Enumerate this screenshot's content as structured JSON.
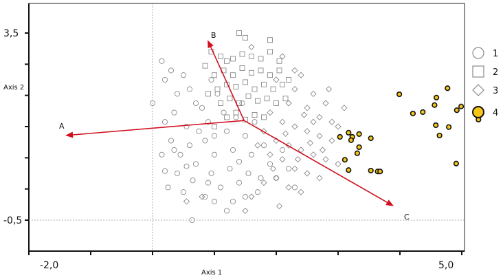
{
  "chart_data": {
    "type": "scatter",
    "title": "",
    "xlabel": "Axis 1",
    "ylabel": "Axis 2",
    "xlim": [
      -2.0,
      5.0
    ],
    "ylim": [
      -1.17,
      4.13
    ],
    "x_tick_labels": [
      {
        "value": -2.0,
        "label": "-2,0"
      },
      {
        "value": 5.0,
        "label": "5,0"
      }
    ],
    "y_tick_labels": [
      {
        "value": 3.5,
        "label": "3,5"
      },
      {
        "value": -0.5,
        "label": "-0,5"
      }
    ],
    "x_ticks": [
      -2,
      -1,
      0,
      1,
      2,
      3,
      4,
      5
    ],
    "y_ticks": [
      3.5,
      2.833,
      2.167,
      1.5,
      0.833,
      0.167,
      -0.5
    ],
    "reference_lines": {
      "x": 0.0,
      "y": -0.5
    },
    "legend_position": "right",
    "colors": {
      "gray": "#8a8a8a",
      "group4_fill": "#f5c518",
      "arrow": "#d0101e"
    },
    "vectors": {
      "origin": [
        1.48,
        1.63
      ],
      "items": [
        {
          "name": "A",
          "tip": [
            -1.41,
            1.31
          ]
        },
        {
          "name": "B",
          "tip": [
            0.89,
            3.35
          ]
        },
        {
          "name": "C",
          "tip": [
            3.9,
            -0.2
          ]
        }
      ]
    },
    "series": [
      {
        "name": "1",
        "marker": "circle",
        "points": [
          [
            0.0,
            2.0
          ],
          [
            0.15,
            2.9
          ],
          [
            0.3,
            2.7
          ],
          [
            0.2,
            2.5
          ],
          [
            0.4,
            2.2
          ],
          [
            0.35,
            1.8
          ],
          [
            0.5,
            2.6
          ],
          [
            0.6,
            2.3
          ],
          [
            0.55,
            1.5
          ],
          [
            0.2,
            1.6
          ],
          [
            0.3,
            1.2
          ],
          [
            0.45,
            0.9
          ],
          [
            0.6,
            1.1
          ],
          [
            0.7,
            0.7
          ],
          [
            0.4,
            0.5
          ],
          [
            0.25,
            0.2
          ],
          [
            0.5,
            0.1
          ],
          [
            0.65,
            0.35
          ],
          [
            0.8,
            1.9
          ],
          [
            0.9,
            1.6
          ],
          [
            0.85,
            1.2
          ],
          [
            1.0,
            0.9
          ],
          [
            0.95,
            0.5
          ],
          [
            1.1,
            0.2
          ],
          [
            1.0,
            -0.1
          ],
          [
            0.9,
            0.3
          ],
          [
            1.2,
            1.4
          ],
          [
            1.3,
            1.0
          ],
          [
            1.25,
            0.6
          ],
          [
            1.4,
            0.3
          ],
          [
            1.35,
            1.7
          ],
          [
            1.5,
            1.3
          ],
          [
            1.6,
            0.9
          ],
          [
            1.55,
            0.5
          ],
          [
            1.7,
            0.1
          ],
          [
            1.8,
            1.1
          ],
          [
            1.9,
            0.7
          ],
          [
            2.0,
            0.4
          ],
          [
            2.1,
            1.0
          ],
          [
            2.2,
            0.6
          ],
          [
            0.7,
            2.0
          ],
          [
            0.75,
            1.4
          ],
          [
            1.15,
            1.8
          ],
          [
            1.05,
            2.2
          ],
          [
            0.95,
            2.5
          ],
          [
            1.45,
            2.0
          ],
          [
            1.65,
            1.6
          ],
          [
            0.35,
            1.0
          ],
          [
            0.15,
            0.9
          ],
          [
            0.55,
            0.65
          ],
          [
            1.3,
            -0.1
          ],
          [
            0.64,
            -0.5
          ],
          [
            1.5,
            0.0
          ],
          [
            1.2,
            -0.3
          ],
          [
            2.3,
            0.2
          ],
          [
            1.75,
            0.4
          ],
          [
            0.85,
            0.0
          ],
          [
            0.2,
            0.55
          ],
          [
            1.0,
            1.3
          ],
          [
            1.4,
            0.75
          ]
        ]
      },
      {
        "name": "2",
        "marker": "square",
        "points": [
          [
            1.4,
            3.5
          ],
          [
            1.5,
            3.4
          ],
          [
            1.9,
            3.35
          ],
          [
            0.95,
            3.1
          ],
          [
            1.1,
            3.0
          ],
          [
            1.2,
            2.9
          ],
          [
            1.3,
            2.95
          ],
          [
            1.45,
            3.05
          ],
          [
            1.6,
            3.0
          ],
          [
            1.75,
            2.95
          ],
          [
            1.9,
            3.1
          ],
          [
            2.05,
            2.9
          ],
          [
            1.0,
            2.6
          ],
          [
            1.15,
            2.7
          ],
          [
            1.3,
            2.6
          ],
          [
            1.45,
            2.75
          ],
          [
            1.6,
            2.65
          ],
          [
            1.75,
            2.7
          ],
          [
            1.9,
            2.6
          ],
          [
            2.05,
            2.7
          ],
          [
            1.05,
            2.3
          ],
          [
            1.2,
            2.4
          ],
          [
            1.35,
            2.35
          ],
          [
            1.5,
            2.45
          ],
          [
            1.65,
            2.3
          ],
          [
            1.8,
            2.4
          ],
          [
            1.95,
            2.3
          ],
          [
            2.1,
            2.4
          ],
          [
            1.1,
            2.0
          ],
          [
            1.25,
            2.1
          ],
          [
            1.4,
            2.0
          ],
          [
            1.55,
            2.15
          ],
          [
            1.7,
            2.05
          ],
          [
            1.85,
            2.1
          ],
          [
            2.0,
            2.0
          ],
          [
            1.2,
            1.7
          ],
          [
            1.35,
            1.8
          ],
          [
            1.5,
            1.65
          ],
          [
            1.65,
            1.75
          ],
          [
            1.8,
            1.7
          ],
          [
            0.85,
            2.8
          ],
          [
            0.9,
            2.2
          ],
          [
            1.0,
            1.5
          ],
          [
            2.2,
            2.5
          ],
          [
            2.15,
            2.1
          ]
        ]
      },
      {
        "name": "3",
        "marker": "diamond",
        "points": [
          [
            1.6,
            3.2
          ],
          [
            2.1,
            3.0
          ],
          [
            2.4,
            2.6
          ],
          [
            2.6,
            2.2
          ],
          [
            2.8,
            2.0
          ],
          [
            2.3,
            2.3
          ],
          [
            2.0,
            2.5
          ],
          [
            2.2,
            2.0
          ],
          [
            2.5,
            1.9
          ],
          [
            2.7,
            1.7
          ],
          [
            2.9,
            1.6
          ],
          [
            1.9,
            1.8
          ],
          [
            2.1,
            1.6
          ],
          [
            2.3,
            1.5
          ],
          [
            2.5,
            1.4
          ],
          [
            2.7,
            1.3
          ],
          [
            2.9,
            1.2
          ],
          [
            3.0,
            1.5
          ],
          [
            1.8,
            1.4
          ],
          [
            2.0,
            1.2
          ],
          [
            2.2,
            1.1
          ],
          [
            2.4,
            1.0
          ],
          [
            2.6,
            0.9
          ],
          [
            2.8,
            0.8
          ],
          [
            3.0,
            0.7
          ],
          [
            1.9,
            0.9
          ],
          [
            2.1,
            0.8
          ],
          [
            2.3,
            0.6
          ],
          [
            2.5,
            0.5
          ],
          [
            2.7,
            0.4
          ],
          [
            2.0,
            0.4
          ],
          [
            2.2,
            0.2
          ],
          [
            1.6,
            0.0
          ],
          [
            1.8,
            0.3
          ],
          [
            2.4,
            0.1
          ],
          [
            0.8,
            0.0
          ],
          [
            0.55,
            -0.1
          ],
          [
            2.6,
            1.6
          ],
          [
            2.45,
            1.75
          ],
          [
            2.15,
            1.35
          ],
          [
            1.7,
            1.1
          ],
          [
            1.95,
            0.6
          ],
          [
            2.35,
            0.8
          ],
          [
            2.55,
            1.15
          ],
          [
            2.75,
            1.0
          ],
          [
            3.1,
            1.9
          ],
          [
            2.85,
            2.3
          ],
          [
            1.5,
            -0.3
          ],
          [
            2.05,
            -0.2
          ],
          [
            2.3,
            2.7
          ]
        ]
      },
      {
        "name": "4",
        "marker": "filled-circle",
        "points": [
          [
            3.99,
            2.19
          ],
          [
            4.77,
            2.32
          ],
          [
            4.59,
            2.12
          ],
          [
            4.56,
            1.96
          ],
          [
            4.21,
            1.78
          ],
          [
            4.37,
            1.81
          ],
          [
            4.92,
            1.85
          ],
          [
            4.99,
            1.93
          ],
          [
            5.27,
            1.65
          ],
          [
            4.58,
            1.53
          ],
          [
            4.79,
            1.49
          ],
          [
            4.64,
            1.31
          ],
          [
            3.03,
            1.28
          ],
          [
            3.17,
            1.37
          ],
          [
            3.23,
            1.28
          ],
          [
            3.21,
            1.21
          ],
          [
            3.34,
            1.34
          ],
          [
            3.53,
            1.25
          ],
          [
            3.34,
            1.06
          ],
          [
            3.31,
            0.93
          ],
          [
            3.11,
            0.79
          ],
          [
            3.17,
            0.57
          ],
          [
            3.53,
            0.56
          ],
          [
            3.64,
            0.54
          ],
          [
            3.68,
            0.54
          ],
          [
            4.91,
            0.71
          ]
        ]
      }
    ],
    "legend": [
      "1",
      "2",
      "3",
      "4"
    ]
  }
}
